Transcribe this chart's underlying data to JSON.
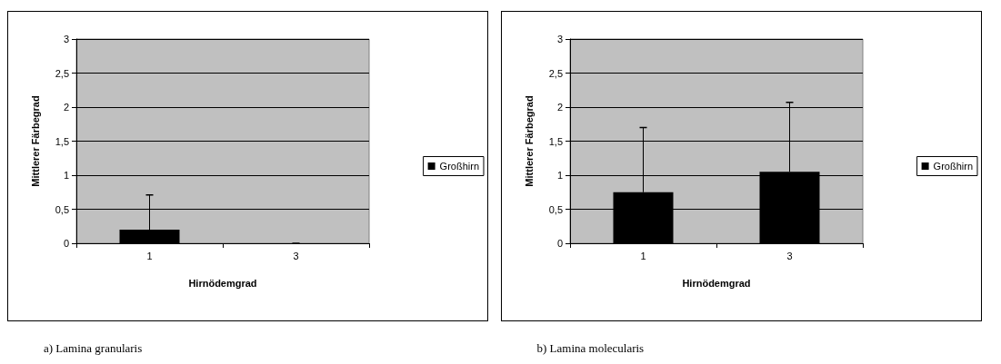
{
  "chart_data": [
    {
      "type": "bar",
      "xlabel": "Hirnödemgrad",
      "ylabel": "Mittlerer Färbegrad",
      "categories": [
        "1",
        "3"
      ],
      "series": [
        {
          "name": "Großhirn",
          "color": "#000000",
          "values": [
            0.2,
            0
          ],
          "errors": [
            [
              0.2,
              0.71
            ],
            [
              0,
              0
            ]
          ]
        }
      ],
      "ylim": [
        0,
        3
      ],
      "yticks": [
        {
          "value": 0,
          "label": "0"
        },
        {
          "value": 0.5,
          "label": "0,5"
        },
        {
          "value": 1,
          "label": "1"
        },
        {
          "value": 1.5,
          "label": "1,5"
        },
        {
          "value": 2,
          "label": "2"
        },
        {
          "value": 2.5,
          "label": "2,5"
        },
        {
          "value": 3,
          "label": "3"
        }
      ],
      "grid": "y",
      "legend": "right",
      "annotations": [
        "a) Lamina granularis"
      ]
    },
    {
      "type": "bar",
      "xlabel": "Hirnödemgrad",
      "ylabel": "Mittlerer Färbegrad",
      "categories": [
        "1",
        "3"
      ],
      "series": [
        {
          "name": "Großhirn",
          "color": "#000000",
          "values": [
            0.75,
            1.05
          ],
          "errors": [
            [
              0.75,
              1.7
            ],
            [
              1.05,
              2.07
            ]
          ]
        }
      ],
      "ylim": [
        0,
        3
      ],
      "yticks": [
        {
          "value": 0,
          "label": "0"
        },
        {
          "value": 0.5,
          "label": "0,5"
        },
        {
          "value": 1,
          "label": "1"
        },
        {
          "value": 1.5,
          "label": "1,5"
        },
        {
          "value": 2,
          "label": "2"
        },
        {
          "value": 2.5,
          "label": "2,5"
        },
        {
          "value": 3,
          "label": "3"
        }
      ],
      "grid": "y",
      "legend": "right",
      "annotations": [
        "b) Lamina molecularis"
      ]
    }
  ]
}
